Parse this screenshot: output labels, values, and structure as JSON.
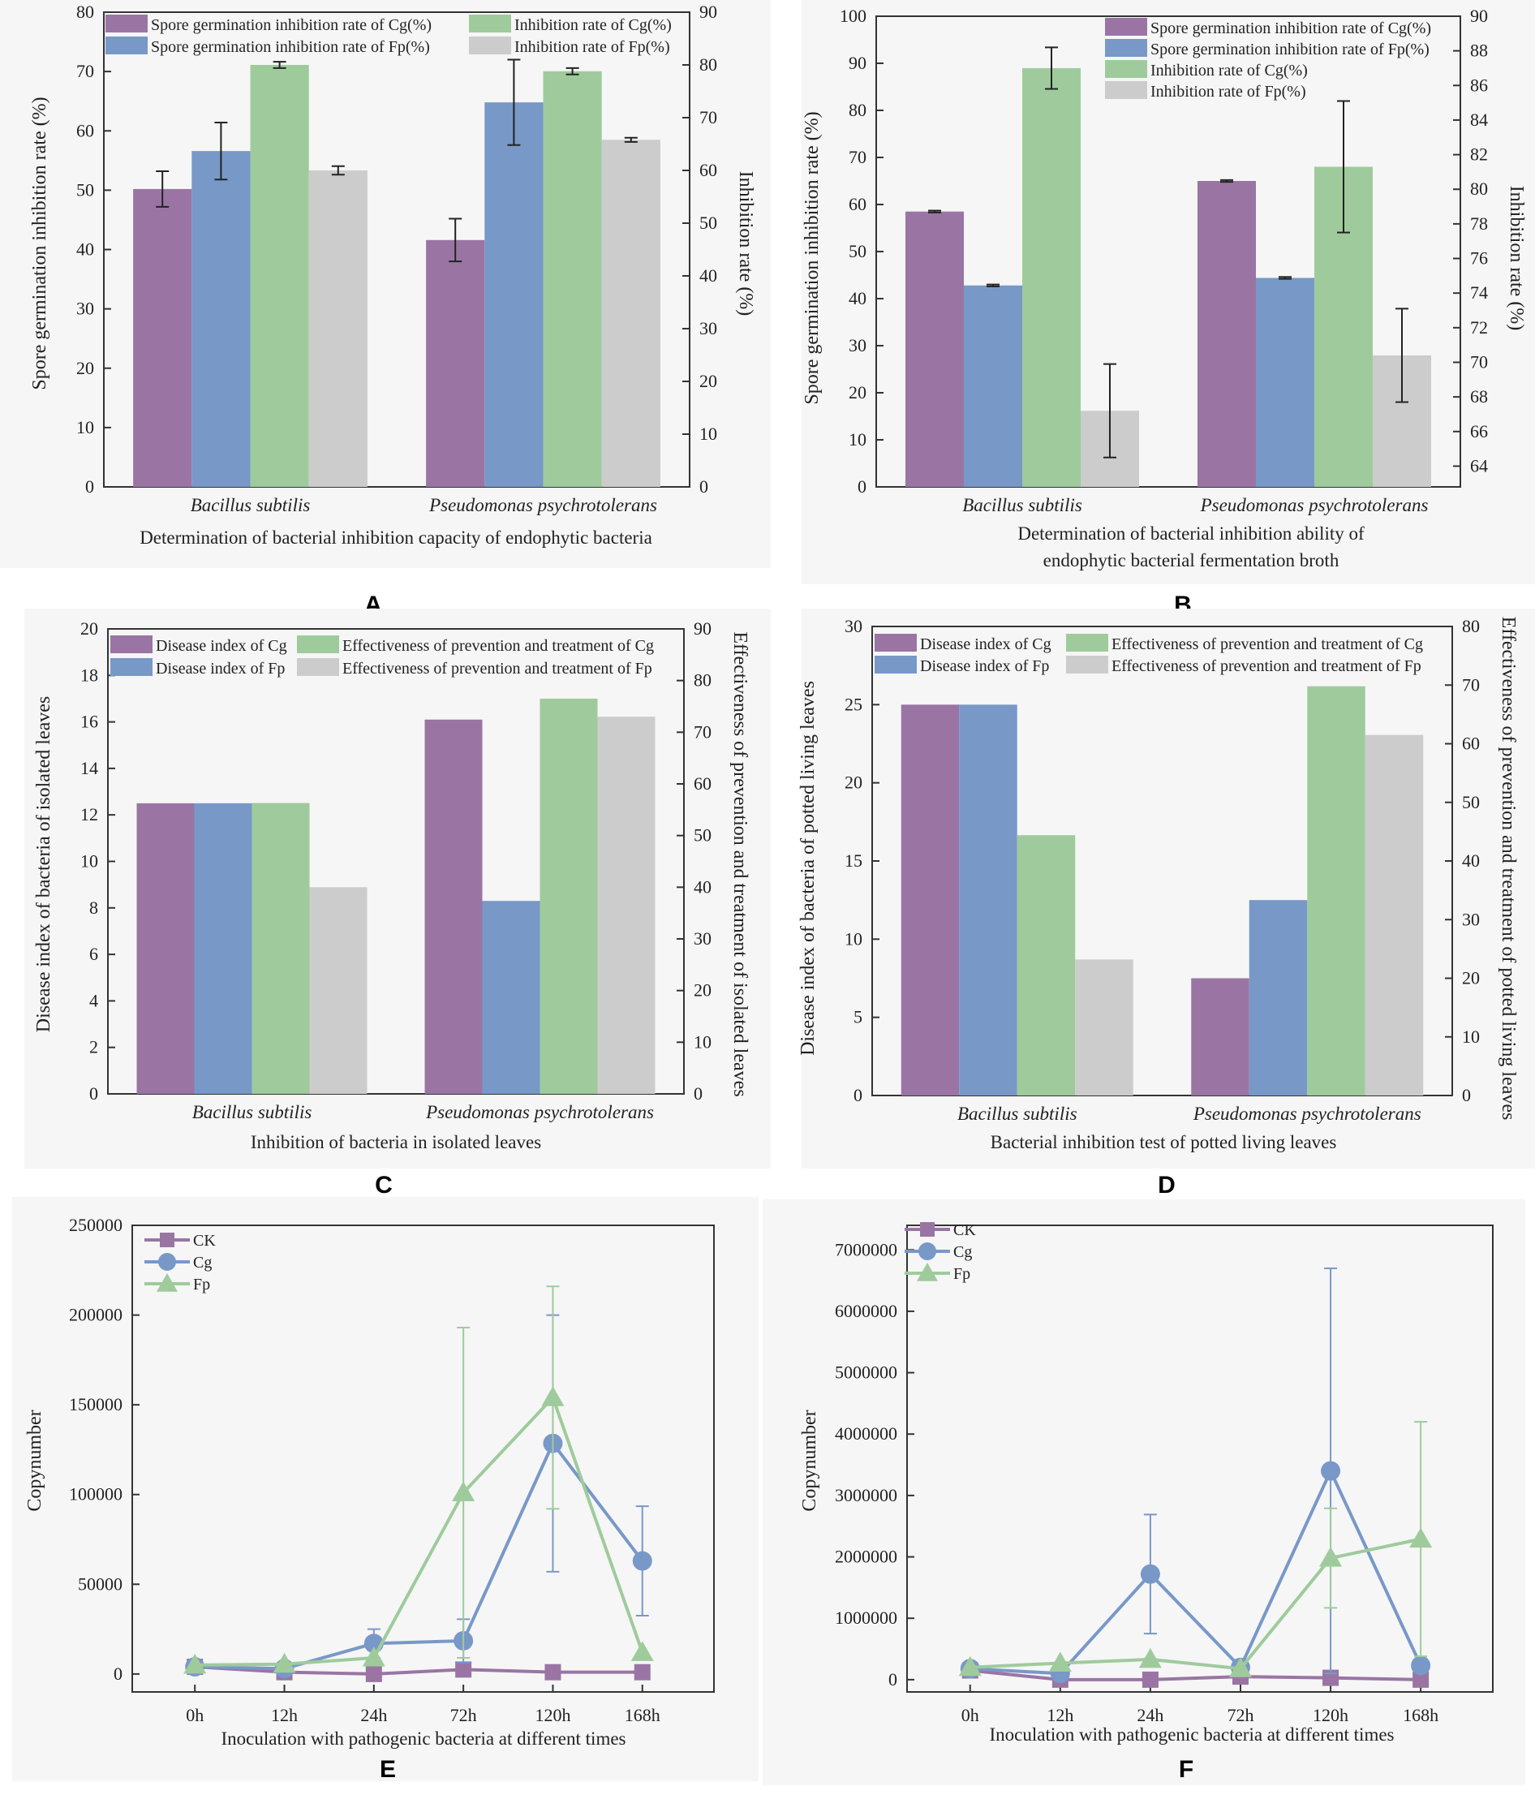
{
  "colors": {
    "purple": "#9a75a4",
    "blue": "#7898c8",
    "green": "#9fcb9c",
    "gray": "#cccccc",
    "cardBg": "#f6f6f6"
  },
  "chart_data": [
    {
      "panel": "A",
      "type": "bar",
      "categories": [
        "Bacillus subtilis",
        "Pseudomonas psychrotolerans"
      ],
      "xlabel": "Determination of bacterial inhibition capacity of endophytic bacteria",
      "ylabel": "Spore germination inhibition rate (%)",
      "ylabel_right": "Inhibition rate (%)",
      "ylim": [
        0,
        80
      ],
      "y_ticks": [
        0,
        10,
        20,
        30,
        40,
        50,
        60,
        70,
        80
      ],
      "ylim_right": [
        0,
        90
      ],
      "y_ticks_right": [
        0,
        10,
        20,
        30,
        40,
        50,
        60,
        70,
        80,
        90
      ],
      "legend_layout": "two-columns",
      "series": [
        {
          "name": "Spore germination inhibition rate of Cg(%)",
          "axis": "left",
          "color": "#9a75a4",
          "values": [
            50.2,
            41.6
          ],
          "errors": [
            3.0,
            3.6
          ]
        },
        {
          "name": "Spore germination inhibition rate of Fp(%)",
          "axis": "left",
          "color": "#7898c8",
          "values": [
            56.6,
            64.8
          ],
          "errors": [
            4.8,
            7.2
          ]
        },
        {
          "name": "Inhibition rate of Cg(%)",
          "axis": "right",
          "color": "#9fcb9c",
          "values": [
            80.0,
            78.8
          ],
          "errors": [
            0.6,
            0.6
          ]
        },
        {
          "name": "Inhibition rate of Fp(%)",
          "axis": "right",
          "color": "#cccccc",
          "values": [
            60.0,
            65.8
          ],
          "errors": [
            0.8,
            0.4
          ]
        }
      ]
    },
    {
      "panel": "B",
      "type": "bar",
      "categories": [
        "Bacillus subtilis",
        "Pseudomonas psychrotolerans"
      ],
      "xlabel": "Determination of bacterial inhibition ability of endophytic bacterial fermentation broth",
      "xlabel_lines": [
        "Determination of bacterial inhibition ability of",
        "endophytic bacterial fermentation broth"
      ],
      "ylabel": "Spore germination inhibition rate (%)",
      "ylabel_right": "Inhibition rate (%)",
      "ylim": [
        0,
        100
      ],
      "y_ticks": [
        0,
        10,
        20,
        30,
        40,
        50,
        60,
        70,
        80,
        90,
        100
      ],
      "ylim_right": [
        62.8,
        90
      ],
      "y_ticks_right": [
        64,
        66,
        68,
        70,
        72,
        74,
        76,
        78,
        80,
        82,
        84,
        86,
        88,
        90
      ],
      "legend_layout": "single-column",
      "series": [
        {
          "name": "Spore germination inhibition rate of Cg(%)",
          "axis": "left",
          "color": "#9a75a4",
          "values": [
            58.5,
            65.0
          ],
          "errors": [
            0.2,
            0.2
          ]
        },
        {
          "name": "Spore germination inhibition rate of Fp(%)",
          "axis": "left",
          "color": "#7898c8",
          "values": [
            42.8,
            44.4
          ],
          "errors": [
            0.2,
            0.2
          ]
        },
        {
          "name": "Inhibition rate of Cg(%)",
          "axis": "right",
          "color": "#9fcb9c",
          "values": [
            87.0,
            81.3
          ],
          "errors": [
            1.2,
            3.8
          ]
        },
        {
          "name": "Inhibition rate of Fp(%)",
          "axis": "right",
          "color": "#cccccc",
          "values": [
            67.2,
            70.4
          ],
          "errors": [
            2.7,
            2.7
          ]
        }
      ]
    },
    {
      "panel": "C",
      "type": "bar",
      "categories": [
        "Bacillus subtilis",
        "Pseudomonas psychrotolerans"
      ],
      "xlabel": "Inhibition of bacteria in isolated leaves",
      "ylabel": "Disease index of bacteria of isolated leaves",
      "ylabel_right": "Effectiveness of prevention and treatment of isolated leaves",
      "ylim": [
        0,
        20
      ],
      "y_ticks": [
        0,
        2,
        4,
        6,
        8,
        10,
        12,
        14,
        16,
        18,
        20
      ],
      "ylim_right": [
        0,
        90
      ],
      "y_ticks_right": [
        0,
        10,
        20,
        30,
        40,
        50,
        60,
        70,
        80,
        90
      ],
      "legend_layout": "two-columns",
      "series": [
        {
          "name": "Disease index of Cg",
          "axis": "left",
          "color": "#9a75a4",
          "values": [
            12.5,
            16.1
          ]
        },
        {
          "name": "Disease index of Fp",
          "axis": "left",
          "color": "#7898c8",
          "values": [
            12.5,
            8.3
          ]
        },
        {
          "name": "Effectiveness of prevention and treatment of Cg",
          "axis": "right",
          "color": "#9fcb9c",
          "values": [
            56.3,
            76.5
          ]
        },
        {
          "name": "Effectiveness of prevention and treatment of Fp",
          "axis": "right",
          "color": "#cccccc",
          "values": [
            40.0,
            73.0
          ]
        }
      ]
    },
    {
      "panel": "D",
      "type": "bar",
      "categories": [
        "Bacillus subtilis",
        "Pseudomonas psychrotolerans"
      ],
      "xlabel": "Bacterial inhibition test of potted living leaves",
      "ylabel": "Disease index of bacteria  of potted living leaves",
      "ylabel_right": "Effectiveness of prevention and treatment of potted living leaves",
      "ylim": [
        0,
        30
      ],
      "y_ticks": [
        0,
        5,
        10,
        15,
        20,
        25,
        30
      ],
      "ylim_right": [
        0,
        80
      ],
      "y_ticks_right": [
        0,
        10,
        20,
        30,
        40,
        50,
        60,
        70,
        80
      ],
      "legend_layout": "two-columns",
      "series": [
        {
          "name": "Disease index of Cg",
          "axis": "left",
          "color": "#9a75a4",
          "values": [
            25.0,
            7.5
          ]
        },
        {
          "name": "Disease index of Fp",
          "axis": "left",
          "color": "#7898c8",
          "values": [
            25.0,
            12.5
          ]
        },
        {
          "name": "Effectiveness of prevention and treatment of Cg",
          "axis": "right",
          "color": "#9fcb9c",
          "values": [
            44.4,
            69.8
          ]
        },
        {
          "name": "Effectiveness of prevention and treatment of Fp",
          "axis": "right",
          "color": "#cccccc",
          "values": [
            23.2,
            61.5
          ]
        }
      ]
    },
    {
      "panel": "E",
      "type": "line",
      "x": [
        "0h",
        "12h",
        "24h",
        "72h",
        "120h",
        "168h"
      ],
      "xlabel": "Inoculation with pathogenic bacteria at different times",
      "ylabel": "Copynumber",
      "ylim": [
        -10000,
        250000
      ],
      "y_ticks": [
        0,
        50000,
        100000,
        150000,
        200000,
        250000
      ],
      "series": [
        {
          "name": "CK",
          "marker": "square",
          "color": "#9a75a4",
          "values": [
            4000,
            1000,
            0,
            2500,
            1000,
            1000
          ],
          "errors": [
            0,
            0,
            0,
            0,
            0,
            0
          ]
        },
        {
          "name": "Cg",
          "marker": "circle",
          "color": "#7898c8",
          "values": [
            4000,
            3000,
            17000,
            18500,
            128500,
            63000
          ],
          "errors": [
            0,
            0,
            8000,
            12000,
            71500,
            30500
          ]
        },
        {
          "name": "Fp",
          "marker": "triangle",
          "color": "#9fcb9c",
          "values": [
            5000,
            5500,
            9000,
            101000,
            154000,
            12000
          ],
          "errors": [
            0,
            0,
            0,
            92000,
            62000,
            0
          ]
        }
      ]
    },
    {
      "panel": "F",
      "type": "line",
      "x": [
        "0h",
        "12h",
        "24h",
        "72h",
        "120h",
        "168h"
      ],
      "xlabel": "Inoculation with pathogenic bacteria at different times",
      "ylabel": "Copynumber",
      "ylim": [
        -200000,
        7400000
      ],
      "y_ticks": [
        0,
        1000000,
        2000000,
        3000000,
        4000000,
        5000000,
        6000000,
        7000000
      ],
      "series": [
        {
          "name": "CK",
          "marker": "square",
          "color": "#9a75a4",
          "values": [
            150000,
            0,
            0,
            50000,
            30000,
            0
          ],
          "errors": [
            0,
            0,
            0,
            0,
            0,
            0
          ]
        },
        {
          "name": "Cg",
          "marker": "circle",
          "color": "#7898c8",
          "values": [
            180000,
            100000,
            1720000,
            200000,
            3400000,
            230000
          ],
          "errors": [
            0,
            0,
            970000,
            0,
            3300000,
            0
          ]
        },
        {
          "name": "Fp",
          "marker": "triangle",
          "color": "#9fcb9c",
          "values": [
            200000,
            270000,
            330000,
            180000,
            1980000,
            2290000
          ],
          "errors": [
            0,
            0,
            0,
            0,
            810000,
            1910000
          ]
        }
      ]
    }
  ]
}
